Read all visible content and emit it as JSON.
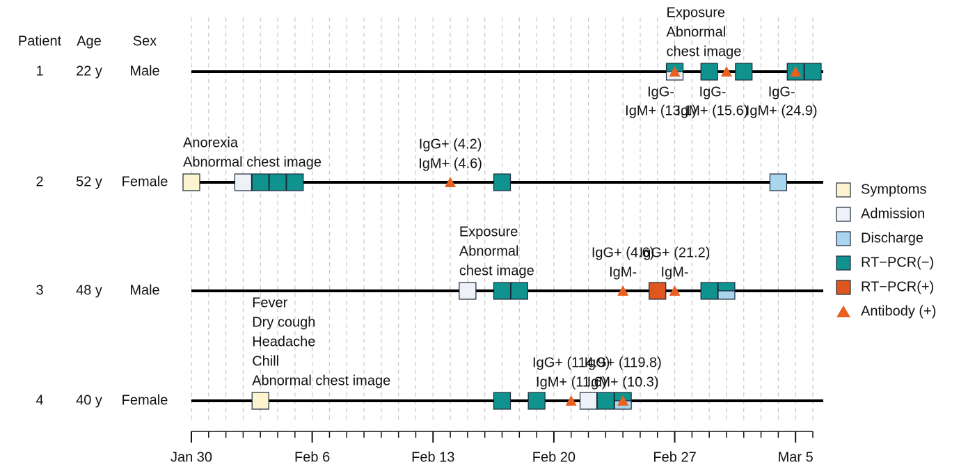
{
  "chart_data": {
    "type": "timeline",
    "headers": [
      "Patient",
      "Age",
      "Sex"
    ],
    "patients": [
      {
        "id": "1",
        "age": "22 y",
        "sex": "Male",
        "notes": [
          {
            "x": 28,
            "lines": [
              "Exposure",
              "Abnormal",
              "chest image"
            ]
          }
        ]
      },
      {
        "id": "2",
        "age": "52 y",
        "sex": "Female",
        "notes": [
          {
            "x": 0,
            "lines": [
              "Anorexia",
              "Abnormal chest image"
            ]
          }
        ]
      },
      {
        "id": "3",
        "age": "48 y",
        "sex": "Male",
        "notes": [
          {
            "x": 16,
            "lines": [
              "Exposure",
              "Abnormal",
              "chest image"
            ]
          }
        ]
      },
      {
        "id": "4",
        "age": "40 y",
        "sex": "Female",
        "notes": [
          {
            "x": 4,
            "lines": [
              "Fever",
              "Dry cough",
              "Headache",
              "Chill",
              "Abnormal chest image"
            ]
          }
        ]
      }
    ],
    "series": [
      {
        "name": "Symptoms",
        "color": "#fdf3cf",
        "shape": "square",
        "x": [
          [],
          [
            0
          ],
          [],
          [
            4
          ]
        ]
      },
      {
        "name": "Admission",
        "color": "#eef2f8",
        "shape": "square",
        "x": [
          [
            28
          ],
          [
            3
          ],
          [
            16
          ],
          [
            23
          ]
        ]
      },
      {
        "name": "Discharge",
        "color": "#a9d5ee",
        "shape": "square",
        "x": [
          [],
          [
            34
          ],
          [
            31
          ],
          [
            25
          ]
        ]
      },
      {
        "name": "RT−PCR(−)",
        "color": "#10938f",
        "shape": "square",
        "x": [
          [
            28,
            30,
            32,
            35,
            36
          ],
          [
            4,
            5,
            6,
            18
          ],
          [
            18,
            19,
            30,
            31
          ],
          [
            18,
            20,
            24,
            25
          ]
        ]
      },
      {
        "name": "RT−PCR(+)",
        "color": "#e0561f",
        "shape": "square",
        "x": [
          [],
          [],
          [
            27
          ],
          []
        ]
      },
      {
        "name": "Antibody (+)",
        "color": "#e8611f",
        "shape": "triangle",
        "x": [
          [
            28,
            31,
            35
          ],
          [
            15
          ],
          [
            25,
            28
          ],
          [
            22,
            25
          ]
        ],
        "labels": [
          [
            [
              "IgG-",
              "IgM+ (13.1)"
            ],
            [
              "IgG-",
              "IgM+ (15.6)"
            ],
            [
              "IgG-",
              "IgM+ (24.9)"
            ]
          ],
          [
            [
              "IgG+ (4.2)",
              "IgM+ (4.6)"
            ]
          ],
          [
            [
              "IgG+ (4.6)",
              "IgM-"
            ],
            [
              "IgG+ (21.2)",
              "IgM-"
            ]
          ],
          [
            [
              "IgG+ (114.9)",
              "IgM+ (11.6)"
            ],
            [
              "IgG+ (119.8)",
              "IgM+ (10.3)"
            ]
          ]
        ]
      }
    ],
    "xlim": [
      0,
      36
    ],
    "xticks": [
      {
        "value": 0,
        "label": "Jan 30"
      },
      {
        "value": 7,
        "label": "Feb 6"
      },
      {
        "value": 14,
        "label": "Feb 13"
      },
      {
        "value": 21,
        "label": "Feb 20"
      },
      {
        "value": 28,
        "label": "Feb 27"
      },
      {
        "value": 35,
        "label": "Mar 5"
      }
    ],
    "xminorticks": [
      0,
      1,
      2,
      3,
      4,
      5,
      6,
      7,
      8,
      9,
      10,
      11,
      12,
      13,
      14,
      15,
      16,
      17,
      18,
      19,
      20,
      21,
      22,
      23,
      24,
      25,
      26,
      27,
      28,
      29,
      30,
      31,
      32,
      33,
      34,
      35,
      36
    ],
    "grid": true,
    "legend": "right"
  }
}
